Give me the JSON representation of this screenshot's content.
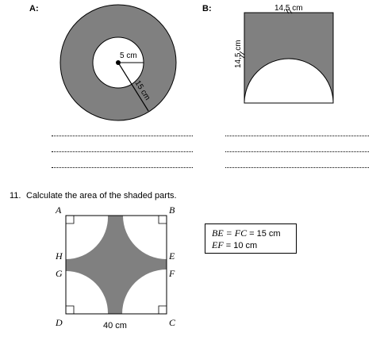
{
  "figure_a": {
    "label": "A:",
    "inner_radius_label": "5 cm",
    "outer_radius_label": "15 cm",
    "shade_color": "#808080"
  },
  "figure_b": {
    "label": "B:",
    "top_side_label": "14,5 cm",
    "left_side_label": "14,5 cm",
    "shade_color": "#808080"
  },
  "question": {
    "number": "11.",
    "text": "Calculate the area of the shaded parts.",
    "corner_labels": {
      "A": "A",
      "B": "B",
      "C": "C",
      "D": "D",
      "E": "E",
      "F": "F",
      "G": "G",
      "H": "H"
    },
    "bottom_label": "40 cm",
    "info_lines": [
      {
        "italic": "BE = FC",
        "rest": " = 15 cm"
      },
      {
        "italic": "EF",
        "rest": " = 10 cm"
      }
    ]
  }
}
